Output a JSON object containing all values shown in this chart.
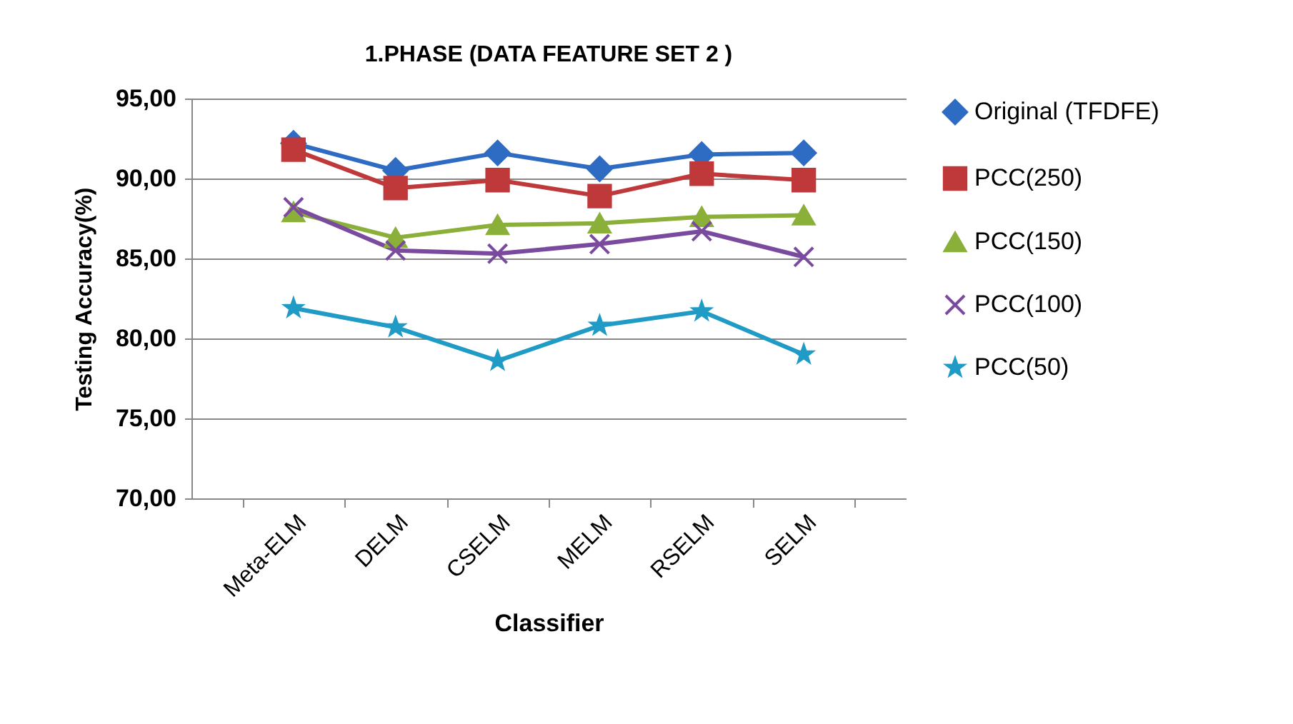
{
  "chart_data": {
    "type": "line",
    "title": "1.PHASE (DATA  FEATURE SET 2 )",
    "xlabel": "Classifier",
    "ylabel": "Testing Accuracy(%)",
    "categories": [
      "Meta-ELM",
      "DELM",
      "CSELM",
      "MELM",
      "RSELM",
      "SELM"
    ],
    "series": [
      {
        "name": "Original (TFDFE)",
        "color": "#2e6bc2",
        "marker": "diamond",
        "values": [
          92.2,
          90.5,
          91.6,
          90.6,
          91.5,
          91.6
        ]
      },
      {
        "name": "PCC(250)",
        "color": "#c0393a",
        "marker": "square",
        "values": [
          91.8,
          89.4,
          89.9,
          88.9,
          90.3,
          89.9
        ]
      },
      {
        "name": "PCC(150)",
        "color": "#8bb03a",
        "marker": "triangle",
        "values": [
          87.9,
          86.3,
          87.1,
          87.2,
          87.6,
          87.7
        ]
      },
      {
        "name": "PCC(100)",
        "color": "#7a4a9e",
        "marker": "cross",
        "values": [
          88.2,
          85.5,
          85.3,
          85.9,
          86.7,
          85.1
        ]
      },
      {
        "name": "PCC(50)",
        "color": "#1f9bc6",
        "marker": "star",
        "values": [
          81.9,
          80.7,
          78.6,
          80.8,
          81.7,
          79.0
        ]
      }
    ],
    "ylim": [
      70,
      95
    ],
    "yticks": [
      {
        "value": 70,
        "label": "70,00"
      },
      {
        "value": 75,
        "label": "75,00"
      },
      {
        "value": 80,
        "label": "80,00"
      },
      {
        "value": 85,
        "label": "85,00"
      },
      {
        "value": 90,
        "label": "90,00"
      },
      {
        "value": 95,
        "label": "95,00"
      }
    ],
    "grid": "y",
    "legend": "right",
    "line_style": "solid"
  }
}
